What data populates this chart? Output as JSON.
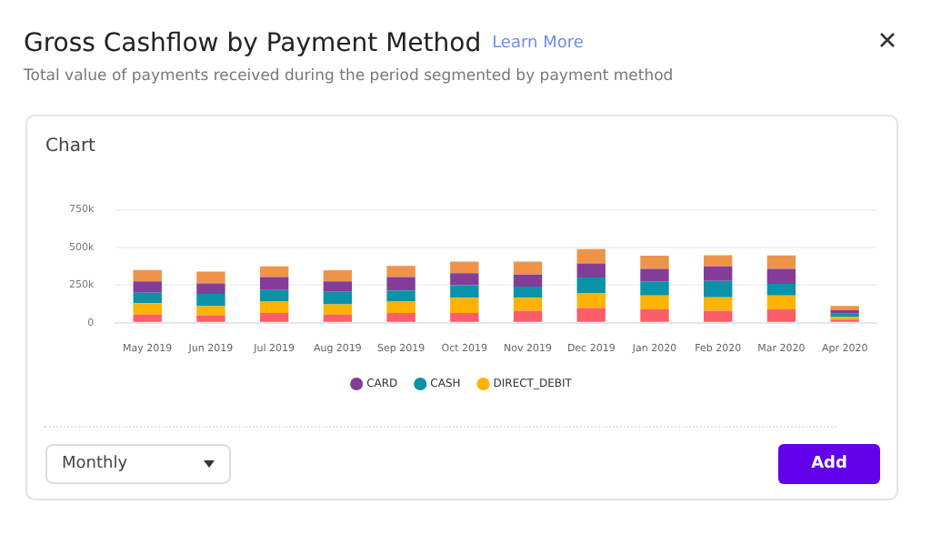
{
  "chart_data": {
    "type": "bar",
    "title": "Gross Cashflow by Payment Method",
    "subtitle": "Total value of payments received during the period segmented by payment method",
    "annotations": [
      "Learn More",
      "Chart",
      "Monthly",
      "Add"
    ],
    "categories": [
      "May 2019",
      "Jun 2019",
      "Jul 2019",
      "Aug 2019",
      "Sep 2019",
      "Oct 2019",
      "Nov 2019",
      "Dec 2019",
      "Jan 2020",
      "Feb 2020",
      "Mar 2020",
      "Apr 2020"
    ],
    "stacked": true,
    "series": [
      {
        "color": "#fc5e68",
        "values": [
          55000,
          50000,
          65000,
          55000,
          65000,
          65000,
          80000,
          99000,
          90000,
          80000,
          90000,
          22000
        ]
      },
      {
        "name": "DIRECT_DEBIT",
        "color": "#fdb300",
        "values": [
          75000,
          60000,
          75000,
          67000,
          75000,
          101000,
          86000,
          96000,
          92000,
          90000,
          92000,
          16000
        ]
      },
      {
        "name": "CASH",
        "color": "#0a93a8",
        "values": [
          70000,
          82000,
          78000,
          83000,
          74000,
          84000,
          74000,
          106000,
          93000,
          108000,
          77000,
          23000
        ]
      },
      {
        "name": "CARD",
        "color": "#833d99",
        "values": [
          75000,
          70000,
          86000,
          70000,
          90000,
          80000,
          80000,
          93000,
          83000,
          96000,
          99000,
          22000
        ]
      },
      {
        "color": "#f0934a",
        "values": [
          75000,
          78000,
          71000,
          74000,
          74000,
          76000,
          86000,
          96000,
          87000,
          74000,
          89000,
          29000
        ]
      }
    ],
    "ylim": [
      0,
      750000
    ],
    "yticks": [
      {
        "value": 0,
        "label": "0"
      },
      {
        "value": 250000,
        "label": "250k"
      },
      {
        "value": 500000,
        "label": "500k"
      },
      {
        "value": 750000,
        "label": "750k"
      }
    ],
    "grid": "y",
    "legend": "bottom"
  }
}
